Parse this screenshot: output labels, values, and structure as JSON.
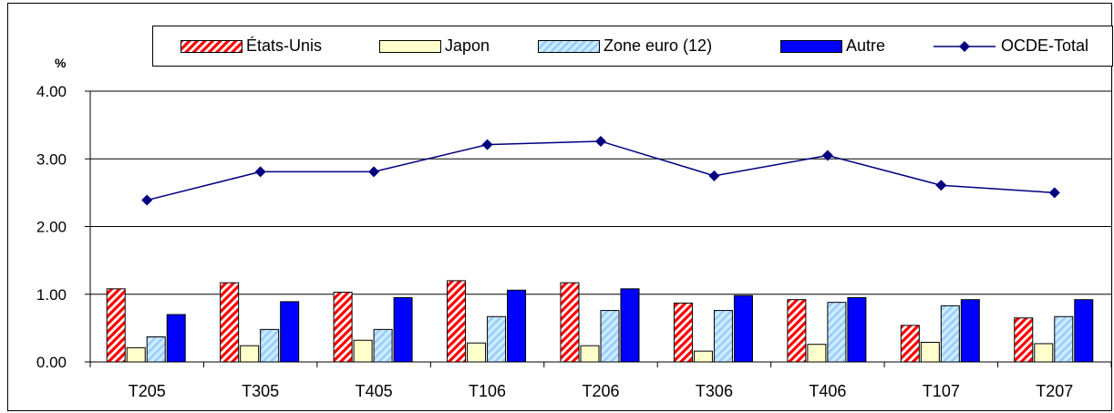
{
  "chart_data": {
    "type": "bar",
    "ylabel": "%",
    "ylim": [
      0,
      4
    ],
    "yticks": [
      "0.00",
      "1.00",
      "2.00",
      "3.00",
      "4.00"
    ],
    "categories": [
      "T205",
      "T305",
      "T405",
      "T106",
      "T206",
      "T306",
      "T406",
      "T107",
      "T207"
    ],
    "series": [
      {
        "name": "États-Unis",
        "type": "bar",
        "color": "#ff0000",
        "pattern": "hatch-red",
        "values": [
          1.08,
          1.17,
          1.03,
          1.2,
          1.17,
          0.87,
          0.92,
          0.54,
          0.65
        ]
      },
      {
        "name": "Japon",
        "type": "bar",
        "color": "#ffffcc",
        "pattern": "solid",
        "values": [
          0.21,
          0.24,
          0.32,
          0.28,
          0.24,
          0.16,
          0.26,
          0.29,
          0.27
        ]
      },
      {
        "name": "Zone euro (12)",
        "type": "bar",
        "color": "#99ccff",
        "pattern": "hatch-blue",
        "values": [
          0.37,
          0.48,
          0.48,
          0.67,
          0.76,
          0.76,
          0.88,
          0.83,
          0.67
        ]
      },
      {
        "name": "Autre",
        "type": "bar",
        "color": "#0000ff",
        "pattern": "solid",
        "values": [
          0.7,
          0.89,
          0.95,
          1.06,
          1.08,
          0.98,
          0.95,
          0.92,
          0.92
        ]
      },
      {
        "name": "OCDE-Total",
        "type": "line",
        "color": "#000080",
        "marker": "diamond",
        "values": [
          2.39,
          2.81,
          2.81,
          3.21,
          3.26,
          2.75,
          3.05,
          2.61,
          2.5
        ]
      }
    ],
    "grid": true,
    "legend": "top"
  }
}
